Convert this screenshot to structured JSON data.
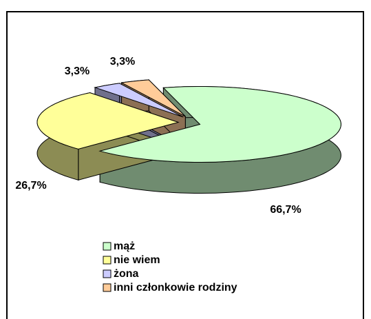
{
  "chart_data": {
    "type": "pie",
    "categories": [
      "mąż",
      "nie wiem",
      "żona",
      "inni członkowie rodziny"
    ],
    "values": [
      66.7,
      26.7,
      3.3,
      3.3
    ],
    "value_labels": [
      "66,7%",
      "26,7%",
      "3,3%",
      "3,3%"
    ],
    "colors": [
      "#ccffcc",
      "#ffff99",
      "#ccccff",
      "#ffcc99"
    ],
    "legend": "bottom"
  }
}
